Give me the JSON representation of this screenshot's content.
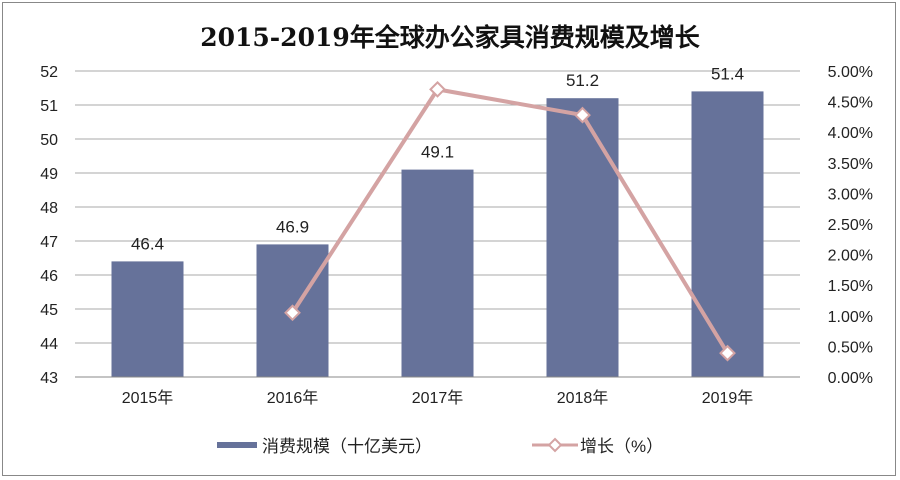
{
  "chart_data": {
    "type": "bar+line",
    "title": "2015-2019年全球办公家具消费规模及增长",
    "categories": [
      "2015年",
      "2016年",
      "2017年",
      "2018年",
      "2019年"
    ],
    "series": [
      {
        "name": "消费规模（十亿美元）",
        "type": "bar",
        "axis": "left",
        "values": [
          46.4,
          46.9,
          49.1,
          51.2,
          51.4
        ],
        "labels": [
          "46.4",
          "46.9",
          "49.1",
          "51.2",
          "51.4"
        ],
        "color": "#66729A"
      },
      {
        "name": "增长（%）",
        "type": "line",
        "axis": "right",
        "values": [
          null,
          1.05,
          4.7,
          4.28,
          0.39
        ],
        "color": "#D4A3A3",
        "marker": "diamond-open"
      }
    ],
    "ylim_left": [
      43,
      52
    ],
    "yticks_left": [
      "43",
      "44",
      "45",
      "46",
      "47",
      "48",
      "49",
      "50",
      "51",
      "52"
    ],
    "ylim_right": [
      0,
      5
    ],
    "yticks_right": [
      "0.00%",
      "0.50%",
      "1.00%",
      "1.50%",
      "2.00%",
      "2.50%",
      "3.00%",
      "3.50%",
      "4.00%",
      "4.50%",
      "5.00%"
    ],
    "grid": true,
    "legend": "bottom"
  }
}
